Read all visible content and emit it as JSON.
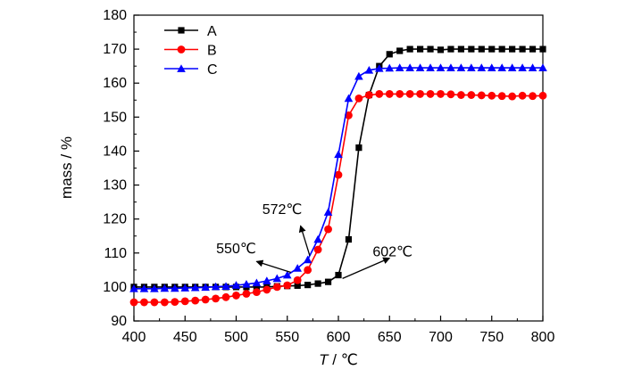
{
  "chart_data": {
    "type": "line",
    "title": "",
    "xlabel_var": "T",
    "xlabel_unit": " / ℃",
    "ylabel": "mass / %",
    "xlim": [
      400,
      800
    ],
    "ylim": [
      90,
      180
    ],
    "xticks": [
      400,
      450,
      500,
      550,
      600,
      650,
      700,
      750,
      800
    ],
    "yticks": [
      90,
      100,
      110,
      120,
      130,
      140,
      150,
      160,
      170,
      180
    ],
    "grid": false,
    "legend_position": "top-left",
    "series": [
      {
        "name": "A",
        "color": "#000000",
        "marker": "square",
        "x": [
          400,
          410,
          420,
          430,
          440,
          450,
          460,
          470,
          480,
          490,
          500,
          510,
          520,
          530,
          540,
          550,
          560,
          570,
          580,
          590,
          600,
          610,
          620,
          630,
          640,
          650,
          660,
          670,
          680,
          690,
          700,
          710,
          720,
          730,
          740,
          750,
          760,
          770,
          780,
          790,
          800
        ],
        "y": [
          100,
          100,
          100,
          100,
          100,
          100,
          100,
          100,
          100,
          100,
          100,
          100,
          100,
          100,
          100.2,
          100.3,
          100.4,
          100.6,
          101,
          101.5,
          103.5,
          114,
          141,
          156.5,
          165,
          168.5,
          169.5,
          170,
          170,
          170,
          169.8,
          170,
          170,
          170,
          170,
          170,
          170,
          170,
          170,
          170,
          170
        ]
      },
      {
        "name": "B",
        "color": "#ff0000",
        "marker": "circle",
        "x": [
          400,
          410,
          420,
          430,
          440,
          450,
          460,
          470,
          480,
          490,
          500,
          510,
          520,
          530,
          540,
          550,
          560,
          570,
          580,
          590,
          600,
          610,
          620,
          630,
          640,
          650,
          660,
          670,
          680,
          690,
          700,
          710,
          720,
          730,
          740,
          750,
          760,
          770,
          780,
          790,
          800
        ],
        "y": [
          95.5,
          95.5,
          95.5,
          95.5,
          95.6,
          95.8,
          96,
          96.3,
          96.6,
          97,
          97.5,
          98,
          98.5,
          99.2,
          100,
          100.5,
          102,
          105,
          111,
          117,
          133,
          150.5,
          155.5,
          156.5,
          156.8,
          156.8,
          156.8,
          156.8,
          156.8,
          156.8,
          156.8,
          156.7,
          156.5,
          156.5,
          156.4,
          156.3,
          156.2,
          156.1,
          156.3,
          156.2,
          156.3
        ]
      },
      {
        "name": "C",
        "color": "#0000ff",
        "marker": "triangle",
        "x": [
          400,
          410,
          420,
          430,
          440,
          450,
          460,
          470,
          480,
          490,
          500,
          510,
          520,
          530,
          540,
          550,
          560,
          570,
          580,
          590,
          600,
          610,
          620,
          630,
          640,
          650,
          660,
          670,
          680,
          690,
          700,
          710,
          720,
          730,
          740,
          750,
          760,
          770,
          780,
          790,
          800
        ],
        "y": [
          99.5,
          99.5,
          99.5,
          99.6,
          99.6,
          99.7,
          99.8,
          99.9,
          100.1,
          100.2,
          100.5,
          100.8,
          101.2,
          101.8,
          102.5,
          103.5,
          105.5,
          108,
          114,
          122,
          139,
          155.5,
          162,
          163.8,
          164.3,
          164.4,
          164.5,
          164.5,
          164.5,
          164.5,
          164.5,
          164.5,
          164.5,
          164.5,
          164.5,
          164.5,
          164.5,
          164.5,
          164.5,
          164.5,
          164.5
        ]
      }
    ],
    "annotations": [
      {
        "label": "550℃",
        "from": [
          553.5,
          104.3
        ],
        "to": [
          520,
          107.5
        ],
        "text_at": [
          500,
          110
        ]
      },
      {
        "label": "572℃",
        "from": [
          572,
          109.2
        ],
        "to": [
          563,
          118
        ],
        "text_at": [
          545,
          121.5
        ]
      },
      {
        "label": "602℃",
        "from": [
          604,
          102.5
        ],
        "to": [
          650,
          108.5
        ],
        "text_at": [
          653,
          109
        ]
      }
    ]
  }
}
